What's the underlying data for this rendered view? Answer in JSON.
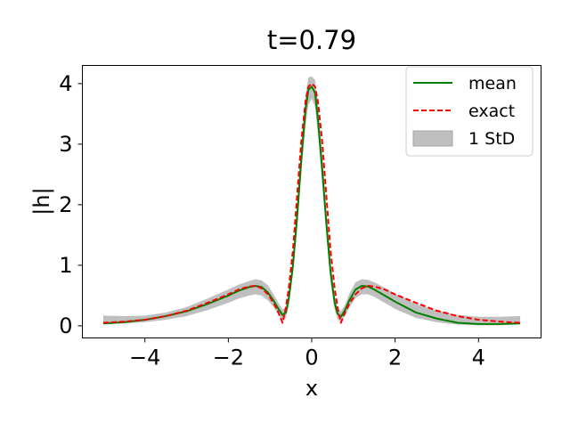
{
  "chart_data": {
    "type": "line",
    "title": "t=0.79",
    "xlabel": "x",
    "ylabel": "|h|",
    "xlim": [
      -5.5,
      5.5
    ],
    "ylim": [
      -0.2,
      4.3
    ],
    "xticks": [
      -4,
      -2,
      0,
      2,
      4
    ],
    "xtick_labels": [
      "−4",
      "−2",
      "0",
      "2",
      "4"
    ],
    "yticks": [
      0,
      1,
      2,
      3,
      4
    ],
    "ytick_labels": [
      "0",
      "1",
      "2",
      "3",
      "4"
    ],
    "grid": false,
    "legend_position": "top-right",
    "legend": [
      "mean",
      "exact",
      "1 StD"
    ],
    "x": [
      -5.0,
      -4.5,
      -4.0,
      -3.5,
      -3.0,
      -2.5,
      -2.0,
      -1.75,
      -1.5,
      -1.35,
      -1.2,
      -1.05,
      -0.9,
      -0.8,
      -0.7,
      -0.62,
      -0.55,
      -0.45,
      -0.35,
      -0.25,
      -0.15,
      -0.08,
      0.0,
      0.08,
      0.15,
      0.25,
      0.35,
      0.45,
      0.55,
      0.62,
      0.7,
      0.8,
      0.9,
      1.05,
      1.2,
      1.35,
      1.5,
      1.75,
      2.0,
      2.5,
      3.0,
      3.5,
      4.0,
      4.5,
      5.0
    ],
    "series": [
      {
        "name": "mean",
        "color": "#008000",
        "style": "solid",
        "values": [
          0.04,
          0.06,
          0.1,
          0.16,
          0.24,
          0.36,
          0.5,
          0.58,
          0.64,
          0.66,
          0.64,
          0.55,
          0.4,
          0.28,
          0.18,
          0.22,
          0.45,
          1.0,
          1.8,
          2.75,
          3.55,
          3.9,
          3.95,
          3.85,
          3.4,
          2.6,
          1.7,
          0.9,
          0.38,
          0.2,
          0.15,
          0.26,
          0.42,
          0.6,
          0.66,
          0.65,
          0.6,
          0.5,
          0.4,
          0.22,
          0.12,
          0.05,
          0.03,
          0.03,
          0.04
        ]
      },
      {
        "name": "exact",
        "color": "#ff0000",
        "style": "dashed",
        "values": [
          0.05,
          0.07,
          0.1,
          0.16,
          0.25,
          0.38,
          0.52,
          0.6,
          0.65,
          0.66,
          0.62,
          0.52,
          0.36,
          0.22,
          0.05,
          0.3,
          0.62,
          1.25,
          2.15,
          3.05,
          3.7,
          3.95,
          4.0,
          3.95,
          3.7,
          3.05,
          2.15,
          1.25,
          0.62,
          0.3,
          0.05,
          0.22,
          0.36,
          0.52,
          0.62,
          0.66,
          0.65,
          0.6,
          0.52,
          0.38,
          0.25,
          0.16,
          0.1,
          0.07,
          0.05
        ]
      }
    ],
    "band": {
      "name": "1 StD",
      "color": "#bfbfbf",
      "lower": [
        0.02,
        0.04,
        0.06,
        0.1,
        0.16,
        0.26,
        0.38,
        0.45,
        0.5,
        0.52,
        0.5,
        0.42,
        0.3,
        0.18,
        0.09,
        0.13,
        0.33,
        0.85,
        1.6,
        2.5,
        3.3,
        3.65,
        3.75,
        3.62,
        3.15,
        2.35,
        1.5,
        0.72,
        0.27,
        0.11,
        0.07,
        0.17,
        0.3,
        0.46,
        0.52,
        0.52,
        0.48,
        0.38,
        0.28,
        0.13,
        0.06,
        0.02,
        0.01,
        0.01,
        0.02
      ],
      "upper": [
        0.17,
        0.16,
        0.17,
        0.22,
        0.31,
        0.45,
        0.6,
        0.68,
        0.74,
        0.77,
        0.75,
        0.67,
        0.5,
        0.38,
        0.27,
        0.31,
        0.57,
        1.15,
        2.0,
        3.0,
        3.8,
        4.1,
        4.12,
        4.06,
        3.65,
        2.85,
        1.9,
        1.08,
        0.5,
        0.29,
        0.24,
        0.35,
        0.53,
        0.72,
        0.77,
        0.76,
        0.72,
        0.63,
        0.53,
        0.36,
        0.25,
        0.18,
        0.15,
        0.15,
        0.16
      ]
    }
  }
}
